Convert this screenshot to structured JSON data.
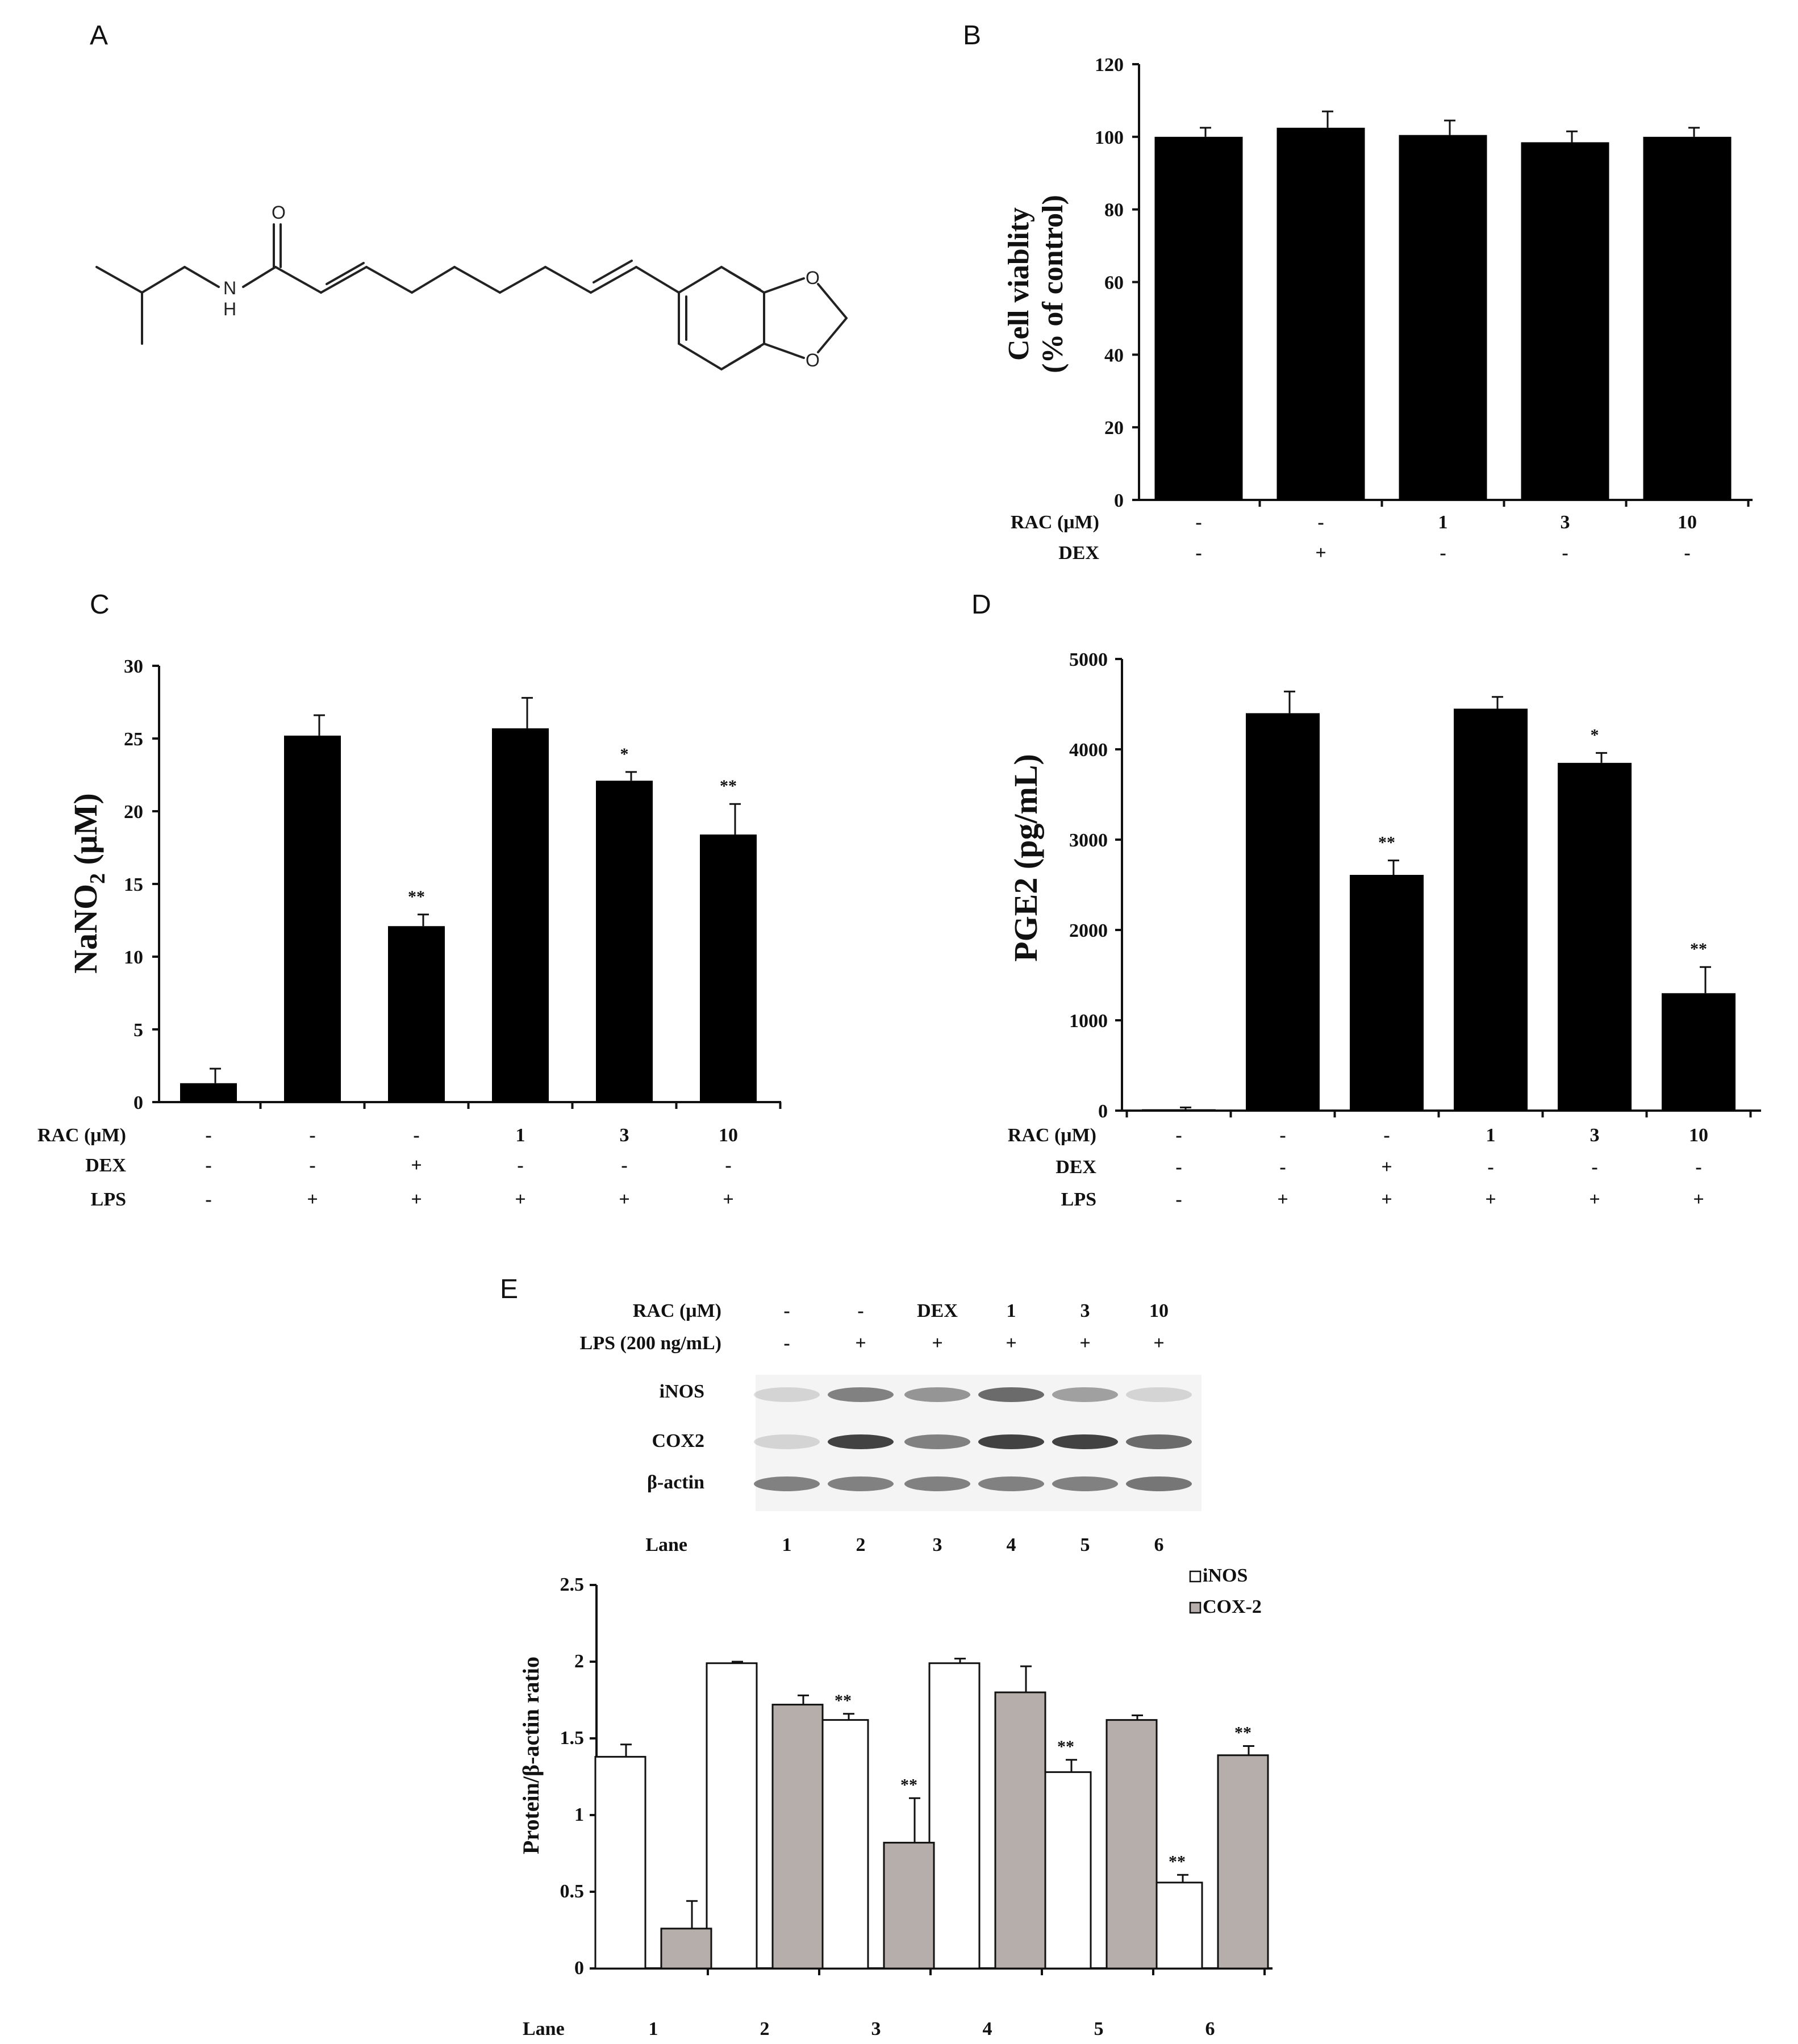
{
  "panels": {
    "A": {
      "letter": "A",
      "atoms": {
        "O1": "O",
        "N": "N",
        "H": "H",
        "O2": "O",
        "O3": "O"
      }
    },
    "B": {
      "letter": "B"
    },
    "C": {
      "letter": "C"
    },
    "D": {
      "letter": "D"
    },
    "E": {
      "letter": "E"
    }
  },
  "blot": {
    "rac_label": "RAC (μM)",
    "rac_values": [
      "-",
      "-",
      "DEX",
      "1",
      "3",
      "10"
    ],
    "lps_label": "LPS (200 ng/mL)",
    "lps_values": [
      "-",
      "+",
      "+",
      "+",
      "+",
      "+"
    ],
    "bands": [
      "iNOS",
      "COX2",
      "β-actin"
    ],
    "lane_label": "Lane",
    "lanes": [
      "1",
      "2",
      "3",
      "4",
      "5",
      "6"
    ],
    "intensity": {
      "iNOS": [
        0.15,
        0.55,
        0.45,
        0.65,
        0.4,
        0.15
      ],
      "COX2": [
        0.15,
        0.85,
        0.55,
        0.85,
        0.85,
        0.65
      ],
      "β-actin": [
        0.55,
        0.55,
        0.55,
        0.55,
        0.55,
        0.6
      ]
    }
  },
  "chart_data": [
    {
      "id": "B",
      "type": "bar",
      "ylabel_line1": "Cell viablity",
      "ylabel_line2": "(% of control)",
      "ylim": [
        0,
        120
      ],
      "yticks": [
        0,
        20,
        40,
        60,
        80,
        100,
        120
      ],
      "values": [
        100,
        102.5,
        100.5,
        98.5,
        100
      ],
      "errors": [
        2.5,
        4.5,
        4,
        3,
        2.5
      ],
      "stars": [
        "",
        "",
        "",
        "",
        ""
      ],
      "conditions": [
        {
          "label": "RAC (μM)",
          "values": [
            "-",
            "-",
            "1",
            "3",
            "10"
          ]
        },
        {
          "label": "DEX",
          "values": [
            "-",
            "+",
            "-",
            "-",
            "-"
          ]
        }
      ]
    },
    {
      "id": "C",
      "type": "bar",
      "ylabel_main": "NaNO",
      "ylabel_sub": "2",
      "ylabel_tail": " (μM)",
      "ylim": [
        0,
        30
      ],
      "yticks": [
        0,
        5,
        10,
        15,
        20,
        25,
        30
      ],
      "values": [
        1.3,
        25.2,
        12.1,
        25.7,
        22.1,
        18.4
      ],
      "errors": [
        1.0,
        1.4,
        0.8,
        2.1,
        0.6,
        2.1
      ],
      "stars": [
        "",
        "",
        "**",
        "",
        "*",
        "**"
      ],
      "conditions": [
        {
          "label": "RAC (μM)",
          "values": [
            "-",
            "-",
            "-",
            "1",
            "3",
            "10"
          ]
        },
        {
          "label": "DEX",
          "values": [
            "-",
            "-",
            "+",
            "-",
            "-",
            "-"
          ]
        },
        {
          "label": "LPS",
          "values": [
            "-",
            "+",
            "+",
            "+",
            "+",
            "+"
          ]
        }
      ]
    },
    {
      "id": "D",
      "type": "bar",
      "ylabel": "PGE2 (pg/mL)",
      "ylim": [
        0,
        5000
      ],
      "yticks": [
        0,
        1000,
        2000,
        3000,
        4000,
        5000
      ],
      "values": [
        15,
        4400,
        2610,
        4450,
        3850,
        1300
      ],
      "errors": [
        20,
        240,
        160,
        130,
        110,
        290
      ],
      "stars": [
        "",
        "",
        "**",
        "",
        "*",
        "**"
      ],
      "conditions": [
        {
          "label": "RAC (μM)",
          "values": [
            "-",
            "-",
            "-",
            "1",
            "3",
            "10"
          ]
        },
        {
          "label": "DEX",
          "values": [
            "-",
            "-",
            "+",
            "-",
            "-",
            "-"
          ]
        },
        {
          "label": "LPS",
          "values": [
            "-",
            "+",
            "+",
            "+",
            "+",
            "+"
          ]
        }
      ]
    },
    {
      "id": "E",
      "type": "bar",
      "ylabel": "Protein/β-actin ratio",
      "xlabel": "Lane",
      "ylim": [
        0,
        2.5
      ],
      "yticks": [
        "0",
        "0.5",
        "1",
        "1.5",
        "2",
        "2.5"
      ],
      "categories": [
        "1",
        "2",
        "3",
        "4",
        "5",
        "6"
      ],
      "legend_position": "top-right",
      "series": [
        {
          "name": "iNOS",
          "color": "#ffffff",
          "values": [
            1.38,
            1.99,
            1.62,
            1.99,
            1.28,
            0.56
          ],
          "errors": [
            0.08,
            0.01,
            0.04,
            0.03,
            0.08,
            0.05
          ],
          "stars": [
            "",
            "",
            "**",
            "",
            "**",
            "**"
          ]
        },
        {
          "name": "COX-2",
          "color": "#b5aeaa",
          "values": [
            0.26,
            1.72,
            0.82,
            1.8,
            1.62,
            1.39
          ],
          "errors": [
            0.18,
            0.06,
            0.29,
            0.17,
            0.03,
            0.06
          ],
          "stars": [
            "",
            "",
            "**",
            "",
            "",
            "**"
          ]
        }
      ]
    }
  ]
}
